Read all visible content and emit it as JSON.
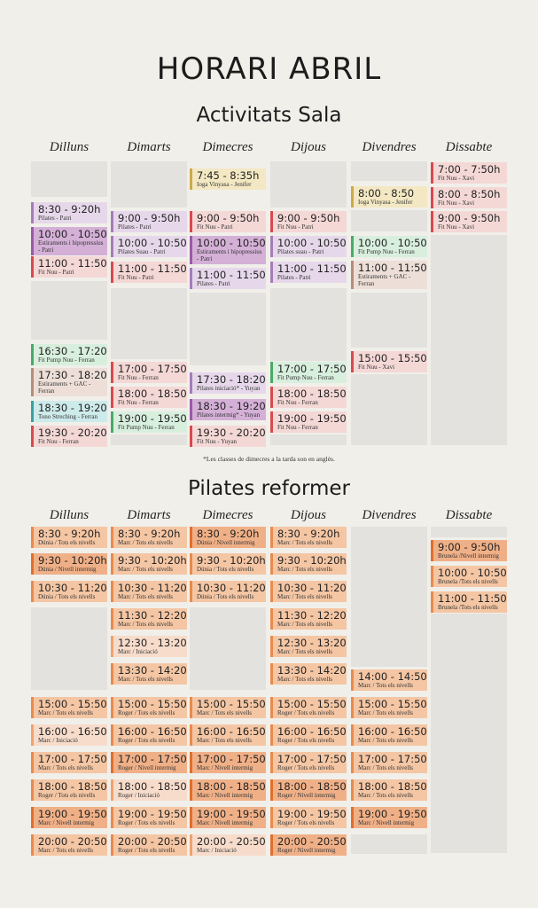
{
  "title": "HORARI ABRIL",
  "sala": {
    "title": "Activitats Sala",
    "days": [
      "Dilluns",
      "Dimarts",
      "Dimecres",
      "Dijous",
      "Divendres",
      "Dissabte"
    ],
    "note": "*Les classes de dimecres a la tarda son en anglès.",
    "colors": {
      "rose": "#f4d8d6",
      "rose_b": "#d9494c",
      "lav": "#e6d8ea",
      "lav_b": "#a57cb8",
      "mauve": "#d4b0d7",
      "mauve_b": "#9a5aa6",
      "yellow": "#f3e8c3",
      "yellow_b": "#cda94a",
      "green": "#d8efdd",
      "green_b": "#4aaa68",
      "teal": "#cdebea",
      "teal_b": "#3aa0a1",
      "beige": "#eddfd8",
      "beige_b": "#b78c79"
    },
    "columns": [
      [
        {
          "time": "8:30 - 9:20h",
          "desc": "Pilates - Patri",
          "c": "lav"
        },
        {
          "time": "10:00 - 10:50h",
          "desc": "Estiraments i hipopressius - Patri",
          "c": "mauve"
        },
        {
          "time": "11:00 - 11:50h",
          "desc": "Fit Nuu - Patri",
          "c": "rose"
        },
        {
          "time": "16:30 - 17:20h",
          "desc": "Fit Pump Nuu - Ferran",
          "c": "green"
        },
        {
          "time": "17:30 - 18:20h",
          "desc": "Estiraments + GAC - Ferran",
          "c": "beige"
        },
        {
          "time": "18:30 - 19:20h",
          "desc": "Tono Streching - Ferran",
          "c": "teal"
        },
        {
          "time": "19:30 - 20:20h",
          "desc": "Fit Nuu - Ferran",
          "c": "rose"
        }
      ],
      [
        {
          "time": "9:00 - 9:50h",
          "desc": "Pilates - Patri",
          "c": "lav"
        },
        {
          "time": "10:00 - 10:50h",
          "desc": "Pilates Suau - Patri",
          "c": "lav"
        },
        {
          "time": "11:00 - 11:50h",
          "desc": "Fit Nuu - Patri",
          "c": "rose"
        },
        {
          "time": "17:00 - 17:50h",
          "desc": "Fit Nuu - Ferran",
          "c": "rose"
        },
        {
          "time": "18:00 - 18:50h",
          "desc": "Fit Nuu - Ferran",
          "c": "rose"
        },
        {
          "time": "19:00 - 19:50h",
          "desc": "Fit Pump Nuu - Ferran",
          "c": "green"
        }
      ],
      [
        {
          "time": "7:45 - 8:35h",
          "desc": "Ioga Vinyasa - Jenifer",
          "c": "yellow"
        },
        {
          "time": "9:00 - 9:50h",
          "desc": "Fit Nuu - Patri",
          "c": "rose"
        },
        {
          "time": "10:00 - 10:50h",
          "desc": "Estiraments i hipopressius - Patri",
          "c": "mauve"
        },
        {
          "time": "11:00 - 11:50h",
          "desc": "Pilates - Patri",
          "c": "lav"
        },
        {
          "time": "17:30 - 18:20h",
          "desc": "Pilates iniciació* - Yuyan",
          "c": "lav"
        },
        {
          "time": "18:30 - 19:20h",
          "desc": "Pilates intermig* - Yuyan",
          "c": "mauve"
        },
        {
          "time": "19:30 - 20:20h",
          "desc": "Fit Nuu - Yuyan",
          "c": "rose"
        }
      ],
      [
        {
          "time": "9:00 - 9:50h",
          "desc": "Fit Nuu - Patri",
          "c": "rose"
        },
        {
          "time": "10:00 - 10:50h",
          "desc": "Pilates suau - Patri",
          "c": "lav"
        },
        {
          "time": "11:00 - 11:50h",
          "desc": "Pilates - Patri",
          "c": "lav"
        },
        {
          "time": "17:00 - 17:50h",
          "desc": "Fit Pump Nuu - Ferran",
          "c": "green"
        },
        {
          "time": "18:00 - 18:50h",
          "desc": "Fit Nuu - Ferran",
          "c": "rose"
        },
        {
          "time": "19:00 - 19:50h",
          "desc": "Fit Nuu - Ferran",
          "c": "rose"
        }
      ],
      [
        {
          "time": "8:00 - 8:50",
          "desc": "Ioga Vinyasa - Jenifer",
          "c": "yellow"
        },
        {
          "time": "10:00 - 10:50h",
          "desc": "Fit Pump Nuu - Ferran",
          "c": "green"
        },
        {
          "time": "11:00 - 11:50h",
          "desc": "Estiraments + GAC - Ferran",
          "c": "beige"
        },
        {
          "time": "15:00 - 15:50h",
          "desc": "Fit Nuu - Xavi",
          "c": "rose"
        }
      ],
      [
        {
          "time": "7:00 - 7:50h",
          "desc": "Fit Nuu - Xavi",
          "c": "rose"
        },
        {
          "time": "8:00 - 8:50h",
          "desc": "Fit Nuu - Xavi",
          "c": "rose"
        },
        {
          "time": "9:00 - 9:50h",
          "desc": "Fit Nuu - Xavi",
          "c": "rose"
        }
      ]
    ]
  },
  "reformer": {
    "title": "Pilates reformer",
    "days": [
      "Dilluns",
      "Dimarts",
      "Dimecres",
      "Dijous",
      "Divendres",
      "Dissabte"
    ],
    "colors": {
      "light": "#f7dccb",
      "light_b": "#f0a26e",
      "mid": "#f4c6a4",
      "mid_b": "#e98a4c",
      "dark": "#f0b087",
      "dark_b": "#e06f2c"
    },
    "columns": [
      [
        {
          "time": "8:30 - 9:20h",
          "desc": "Dúnia / Tots els nivells",
          "c": "mid"
        },
        {
          "time": "9:30 - 10:20h",
          "desc": "Dúnia / Nivell intermig",
          "c": "dark"
        },
        {
          "time": "10:30 - 11:20h",
          "desc": "Dúnia / Tots els nivells",
          "c": "mid"
        },
        {
          "time": "15:00 - 15:50h",
          "desc": "Marc / Tots els nivells",
          "c": "mid"
        },
        {
          "time": "16:00 - 16:50h",
          "desc": "Marc / Iniciació",
          "c": "light"
        },
        {
          "time": "17:00 - 17:50h",
          "desc": "Marc / Tots els nivells",
          "c": "mid"
        },
        {
          "time": "18:00 - 18:50h",
          "desc": "Roger / Tots els nivells",
          "c": "mid"
        },
        {
          "time": "19:00 - 19:50h",
          "desc": "Marc / Nivell intermig",
          "c": "dark"
        },
        {
          "time": "20:00 - 20:50h",
          "desc": "Marc / Tots els nivells",
          "c": "mid"
        }
      ],
      [
        {
          "time": "8:30 - 9:20h",
          "desc": "Marc / Tots els nivells",
          "c": "mid"
        },
        {
          "time": "9:30 - 10:20h",
          "desc": "Marc / Tots els nivells",
          "c": "mid"
        },
        {
          "time": "10:30 - 11:20h",
          "desc": "Marc / Tots els nivells",
          "c": "mid"
        },
        {
          "time": "11:30 - 12:20h",
          "desc": "Marc / Tots els nivells",
          "c": "mid"
        },
        {
          "time": "12:30 - 13:20h",
          "desc": "Marc / Iniciació",
          "c": "light"
        },
        {
          "time": "13:30 - 14:20h",
          "desc": "Marc / Tots els nivells",
          "c": "mid"
        },
        {
          "time": "15:00 - 15:50h",
          "desc": "Roger / Tots els nivells",
          "c": "mid"
        },
        {
          "time": "16:00 - 16:50h",
          "desc": "Roger / Tots els nivells",
          "c": "mid"
        },
        {
          "time": "17:00 - 17:50h",
          "desc": "Roger / Nivell intermig",
          "c": "dark"
        },
        {
          "time": "18:00 - 18:50h",
          "desc": "Roger / Iniciació",
          "c": "light"
        },
        {
          "time": "19:00 - 19:50h",
          "desc": "Roger / Tots els nivells",
          "c": "mid"
        },
        {
          "time": "20:00 - 20:50h",
          "desc": "Roger / Tots els nivells",
          "c": "mid"
        }
      ],
      [
        {
          "time": "8:30 - 9:20h",
          "desc": "Dúnia / Nivell intermig",
          "c": "dark"
        },
        {
          "time": "9:30 - 10:20h",
          "desc": "Dúnia / Tots els nivells",
          "c": "mid"
        },
        {
          "time": "10:30 - 11:20h",
          "desc": "Dúnia / Tots els nivells",
          "c": "mid"
        },
        {
          "time": "15:00 - 15:50h",
          "desc": "Marc / Tots els nivells",
          "c": "mid"
        },
        {
          "time": "16:00 - 16:50h",
          "desc": "Marc / Tots els nivells",
          "c": "mid"
        },
        {
          "time": "17:00 - 17:50h",
          "desc": "Marc / Nivell intermig",
          "c": "dark"
        },
        {
          "time": "18:00 - 18:50h",
          "desc": "Marc / Nivell intermig",
          "c": "dark"
        },
        {
          "time": "19:00 - 19:50h",
          "desc": "Marc / Nivell intermig",
          "c": "dark"
        },
        {
          "time": "20:00 - 20:50h",
          "desc": "Marc / Iniciació",
          "c": "light"
        }
      ],
      [
        {
          "time": "8:30 - 9:20h",
          "desc": "Marc / Tots els nivells",
          "c": "mid"
        },
        {
          "time": "9:30 - 10:20h",
          "desc": "Marc / Tots els nivells",
          "c": "mid"
        },
        {
          "time": "10:30 - 11:20h",
          "desc": "Marc / Tots els nivells",
          "c": "mid"
        },
        {
          "time": "11:30 - 12:20h",
          "desc": "Marc / Tots els nivells",
          "c": "mid"
        },
        {
          "time": "12:30 - 13:20h",
          "desc": "Marc / Tots els nivells",
          "c": "mid"
        },
        {
          "time": "13:30 - 14:20h",
          "desc": "Marc / Tots els nivells",
          "c": "mid"
        },
        {
          "time": "15:00 - 15:50h",
          "desc": "Roger / Tots els nivells",
          "c": "mid"
        },
        {
          "time": "16:00 - 16:50h",
          "desc": "Roger / Tots els nivells",
          "c": "mid"
        },
        {
          "time": "17:00 - 17:50h",
          "desc": "Roger / Tots els nivells",
          "c": "mid"
        },
        {
          "time": "18:00 - 18:50h",
          "desc": "Roger / Nivell intermig",
          "c": "dark"
        },
        {
          "time": "19:00 - 19:50h",
          "desc": "Roger / Tots els nivells",
          "c": "mid"
        },
        {
          "time": "20:00 - 20:50h",
          "desc": "Roger / Nivell intermig",
          "c": "dark"
        }
      ],
      [
        {
          "time": "14:00 - 14:50h",
          "desc": "Marc / Tots els nivells",
          "c": "mid"
        },
        {
          "time": "15:00 - 15:50h",
          "desc": "Marc / Tots els nivells",
          "c": "mid"
        },
        {
          "time": "16:00 - 16:50h",
          "desc": "Marc / Tots els nivells",
          "c": "mid"
        },
        {
          "time": "17:00 - 17:50h",
          "desc": "Marc / Tots els nivells",
          "c": "mid"
        },
        {
          "time": "18:00 - 18:50h",
          "desc": "Marc / Tots els nivells",
          "c": "mid"
        },
        {
          "time": "19:00 - 19:50h",
          "desc": "Marc / Nivell intermig",
          "c": "dark"
        }
      ],
      [
        {
          "time": "9:00 - 9:50h",
          "desc": "Brunela /Nivell intermig",
          "c": "dark"
        },
        {
          "time": "10:00 - 10:50h",
          "desc": "Brunela /Tots els nivells",
          "c": "mid"
        },
        {
          "time": "11:00 - 11:50h",
          "desc": "Brunela /Tots els nivells",
          "c": "mid"
        }
      ]
    ]
  }
}
